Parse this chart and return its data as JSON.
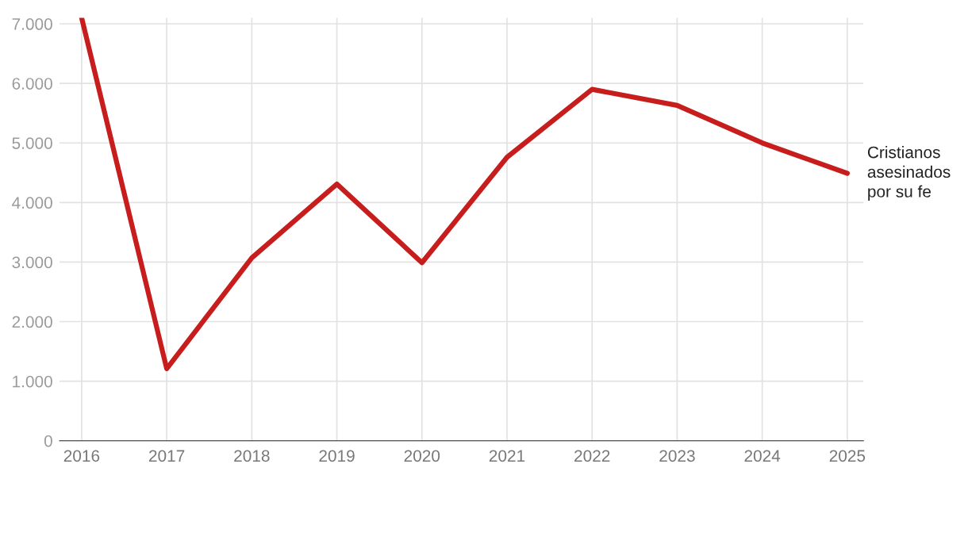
{
  "chart_data": {
    "type": "line",
    "categories": [
      "2016",
      "2017",
      "2018",
      "2019",
      "2020",
      "2021",
      "2022",
      "2023",
      "2024",
      "2025"
    ],
    "series": [
      {
        "name": "Cristianos\nasesinados\npor su fe",
        "color": "#c71e1d",
        "values": [
          7100,
          1210,
          3070,
          4310,
          2990,
          4760,
          5900,
          5630,
          5000,
          4490
        ]
      }
    ],
    "ylim": [
      0,
      7100
    ],
    "yticks": [
      0,
      {
        "value": 1000,
        "label": "1.000"
      },
      {
        "value": 2000,
        "label": "2.000"
      },
      {
        "value": 3000,
        "label": "3.000"
      },
      {
        "value": 4000,
        "label": "4.000"
      },
      {
        "value": 5000,
        "label": "5.000"
      },
      {
        "value": 6000,
        "label": "6.000"
      },
      {
        "value": 7000,
        "label": "7.000"
      }
    ],
    "grid": true,
    "legend": false,
    "marker": "none",
    "line_style": "solid"
  }
}
